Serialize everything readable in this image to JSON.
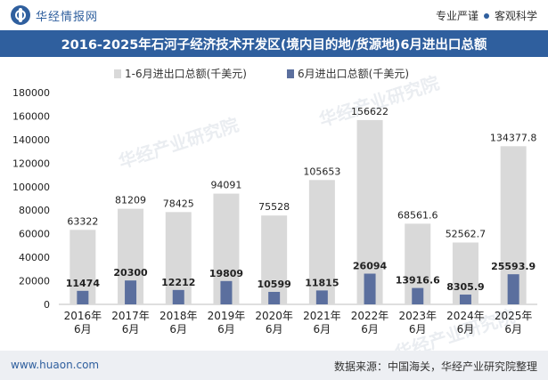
{
  "brand": {
    "name": "华经情报网"
  },
  "slogan": {
    "left": "专业严谨",
    "right": "客观科学"
  },
  "title": "2016-2025年石河子经济技术开发区(境内目的地/货源地)6月进出口总额",
  "footer": {
    "website": "www.huaon.com",
    "source": "数据来源：中国海关，华经产业研究院整理"
  },
  "watermark": "华经产业研究院",
  "colors": {
    "header_blue": "#2f5f9e",
    "series1": "#d9d9d9",
    "series2": "#5b6f9e",
    "text": "#222222"
  },
  "chart_data": {
    "type": "bar",
    "categories": [
      "2016年\n6月",
      "2017年\n6月",
      "2018年\n6月",
      "2019年\n6月",
      "2020年\n6月",
      "2021年\n6月",
      "2022年\n6月",
      "2023年\n6月",
      "2024年\n6月",
      "2025年\n6月"
    ],
    "series": [
      {
        "name": "1-6月进出口总额(千美元)",
        "values": [
          63322,
          81209,
          78425,
          94091,
          75528,
          105653,
          156622,
          68561.6,
          52562.7,
          134377.8
        ],
        "labels": [
          "63322",
          "81209",
          "78425",
          "94091",
          "75528",
          "105653",
          "156622",
          "68561.6",
          "52562.7",
          "134377.8"
        ]
      },
      {
        "name": "6月进出口总额(千美元)",
        "values": [
          11474,
          20300,
          12212,
          19809,
          10599,
          11815,
          26094,
          13916.6,
          8305.9,
          25593.9
        ],
        "labels": [
          "11474",
          "20300",
          "12212",
          "19809",
          "10599",
          "11815",
          "26094",
          "13916.6",
          "8305.9",
          "25593.9"
        ]
      }
    ],
    "ylim": [
      0,
      180000
    ],
    "yticks": [
      "0",
      "20000",
      "40000",
      "60000",
      "80000",
      "100000",
      "120000",
      "140000",
      "160000",
      "180000"
    ],
    "grid": false,
    "legend": "top-left"
  }
}
